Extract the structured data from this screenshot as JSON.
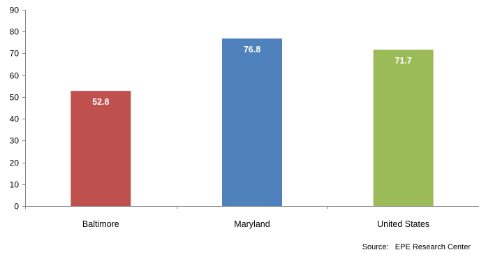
{
  "chart_data": {
    "type": "bar",
    "categories": [
      "Baltimore",
      "Maryland",
      "United States"
    ],
    "values": [
      52.8,
      76.8,
      71.7
    ],
    "data_labels": [
      "52.8",
      "76.8",
      "71.7"
    ],
    "bar_colors": [
      "#c0504d",
      "#4f81bd",
      "#9bbb59"
    ],
    "title": "",
    "xlabel": "",
    "ylabel": "",
    "ylim": [
      0,
      90
    ],
    "yticks": [
      0,
      10,
      20,
      30,
      40,
      50,
      60,
      70,
      80,
      90
    ],
    "grid": false,
    "legend": "none"
  },
  "source": {
    "label": "Source:",
    "text": "EPE Research Center"
  }
}
